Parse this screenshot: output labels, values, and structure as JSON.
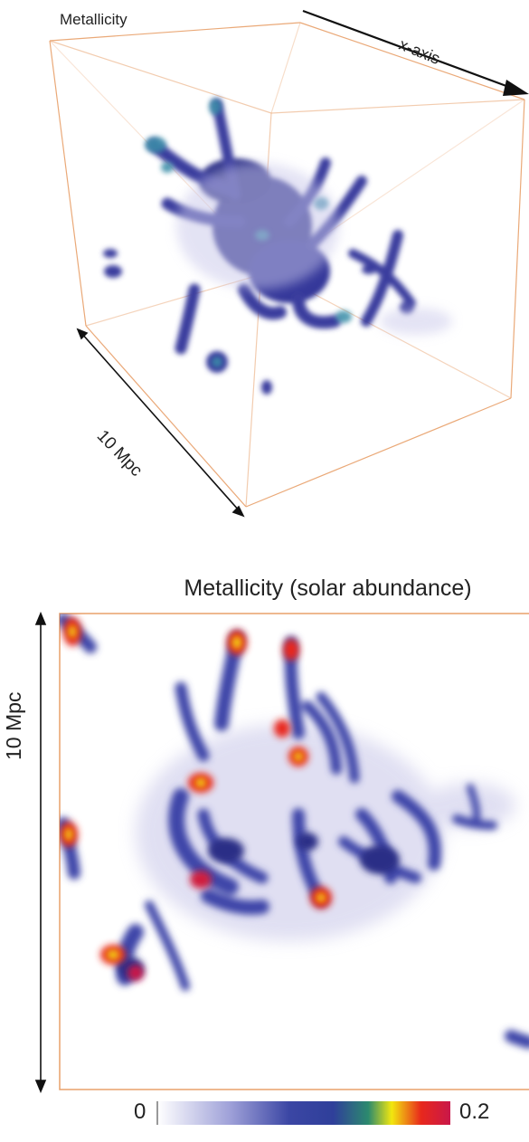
{
  "cube": {
    "title": "Metallicity",
    "axis_label": "x-axis",
    "scale_label": "10 Mpc",
    "edge_color": "#e8a06a"
  },
  "map": {
    "title": "Metallicity (solar abundance)",
    "scale_label": "10 Mpc",
    "frame_color": "#e8a06a"
  },
  "colorbar": {
    "min_label": "0",
    "max_label": "0.2",
    "colors": [
      "#ffffff",
      "#9ea0d8",
      "#3b46a4",
      "#2f3f9a",
      "#2c8a6e",
      "#f2e70f",
      "#e8281c",
      "#c9174a"
    ]
  }
}
